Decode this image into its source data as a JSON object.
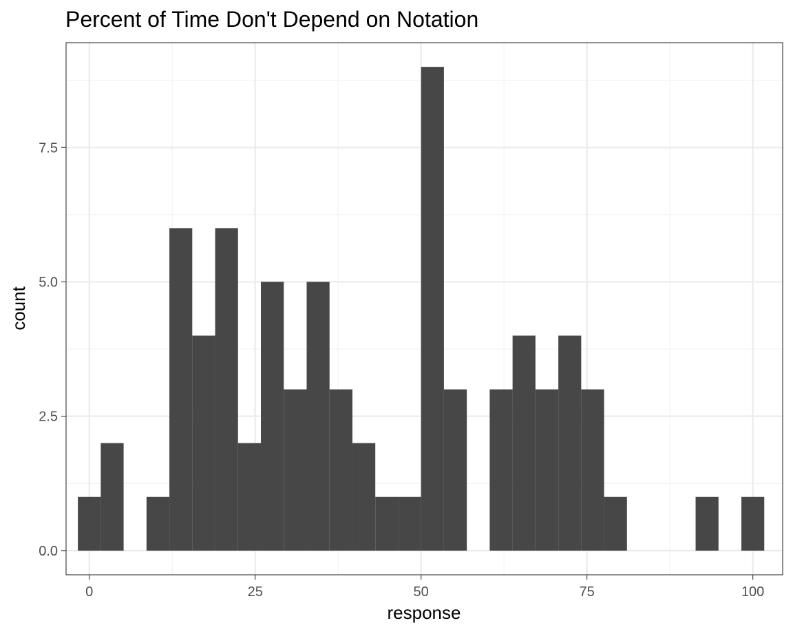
{
  "chart_data": {
    "type": "histogram",
    "title": "Percent of Time Don't Depend on Notation",
    "xlabel": "response",
    "ylabel": "count",
    "xlim": [
      -3.5,
      104.5
    ],
    "ylim": [
      -0.45,
      9.45
    ],
    "x_ticks": [
      {
        "value": 0,
        "label": "0"
      },
      {
        "value": 25,
        "label": "25"
      },
      {
        "value": 50,
        "label": "50"
      },
      {
        "value": 75,
        "label": "75"
      },
      {
        "value": 100,
        "label": "100"
      }
    ],
    "y_ticks": [
      {
        "value": 0,
        "label": "0.0"
      },
      {
        "value": 2.5,
        "label": "2.5"
      },
      {
        "value": 5,
        "label": "5.0"
      },
      {
        "value": 7.5,
        "label": "7.5"
      }
    ],
    "bin_width": 3.448,
    "bins": [
      {
        "center": 0.0,
        "count": 1
      },
      {
        "center": 3.448,
        "count": 2
      },
      {
        "center": 6.897,
        "count": 0
      },
      {
        "center": 10.345,
        "count": 1
      },
      {
        "center": 13.793,
        "count": 6
      },
      {
        "center": 17.241,
        "count": 4
      },
      {
        "center": 20.69,
        "count": 6
      },
      {
        "center": 24.138,
        "count": 2
      },
      {
        "center": 27.586,
        "count": 5
      },
      {
        "center": 31.034,
        "count": 3
      },
      {
        "center": 34.483,
        "count": 5
      },
      {
        "center": 37.931,
        "count": 3
      },
      {
        "center": 41.379,
        "count": 2
      },
      {
        "center": 44.828,
        "count": 1
      },
      {
        "center": 48.276,
        "count": 1
      },
      {
        "center": 51.724,
        "count": 9
      },
      {
        "center": 55.172,
        "count": 3
      },
      {
        "center": 58.621,
        "count": 0
      },
      {
        "center": 62.069,
        "count": 3
      },
      {
        "center": 65.517,
        "count": 4
      },
      {
        "center": 68.966,
        "count": 3
      },
      {
        "center": 72.414,
        "count": 4
      },
      {
        "center": 75.862,
        "count": 3
      },
      {
        "center": 79.31,
        "count": 1
      },
      {
        "center": 82.759,
        "count": 0
      },
      {
        "center": 86.207,
        "count": 0
      },
      {
        "center": 89.655,
        "count": 0
      },
      {
        "center": 93.103,
        "count": 1
      },
      {
        "center": 96.552,
        "count": 0
      },
      {
        "center": 100.0,
        "count": 1
      }
    ],
    "bar_color": "#474747",
    "grid": true,
    "grid_major_color": "#ebebeb",
    "grid_minor_color": "#f3f3f3",
    "panel_border_color": "#333333",
    "tick_color": "#333333",
    "theme": "bw"
  }
}
